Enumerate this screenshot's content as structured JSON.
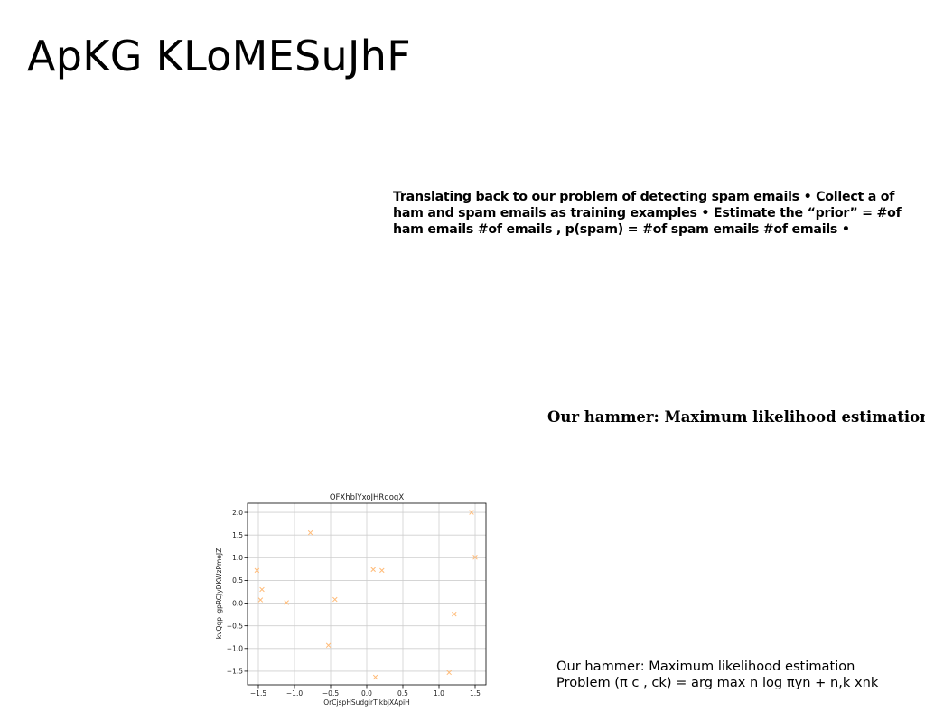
{
  "slide": {
    "title": "ApKG KLoMESuJhF",
    "paragraph": "Translating back to our problem of detecting spam emails • Collect a of ham and spam emails as training examples • Estimate the “prior” = #of ham emails #of emails , p(spam) = #of spam emails #of emails •",
    "heading": "Our hammer: Maximum likelihood estimation",
    "notes": {
      "line1": "Our hammer: Maximum likelihood estimation",
      "line2": "Problem (π c , ck) = arg max  n log πyn +  n,k xnk"
    }
  },
  "chart_data": {
    "type": "scatter",
    "title": "OFXhblYxoJHRqogX",
    "xlabel": "OrCjspHSudgirTlkbjXApiH",
    "ylabel": "kvQqp lgpRCJyDKWzPmeJZ",
    "xlim": [
      -1.65,
      1.65
    ],
    "ylim": [
      -1.8,
      2.2
    ],
    "xticks": [
      -1.5,
      -1.0,
      -0.5,
      0.0,
      0.5,
      1.0,
      1.5
    ],
    "xtick_labels": [
      "−1.5",
      "−1.0",
      "−0.5",
      "0.0",
      "0.5",
      "1.0",
      "1.5"
    ],
    "yticks": [
      -1.5,
      -1.0,
      -0.5,
      0.0,
      0.5,
      1.0,
      1.5,
      2.0
    ],
    "ytick_labels": [
      "−1.5",
      "−1.0",
      "−0.5",
      "0.0",
      "0.5",
      "1.0",
      "1.5",
      "2.0"
    ],
    "grid": true,
    "marker": "x",
    "color": "#ffbb78",
    "x": [
      -1.52,
      -1.45,
      -1.47,
      -1.11,
      -0.78,
      -0.53,
      -0.44,
      0.09,
      0.21,
      0.12,
      1.14,
      1.21,
      1.45,
      1.5
    ],
    "y": [
      0.72,
      0.3,
      0.07,
      0.01,
      1.55,
      -0.93,
      0.08,
      0.74,
      0.72,
      -1.63,
      -1.53,
      -0.24,
      2.0,
      1.01
    ]
  }
}
